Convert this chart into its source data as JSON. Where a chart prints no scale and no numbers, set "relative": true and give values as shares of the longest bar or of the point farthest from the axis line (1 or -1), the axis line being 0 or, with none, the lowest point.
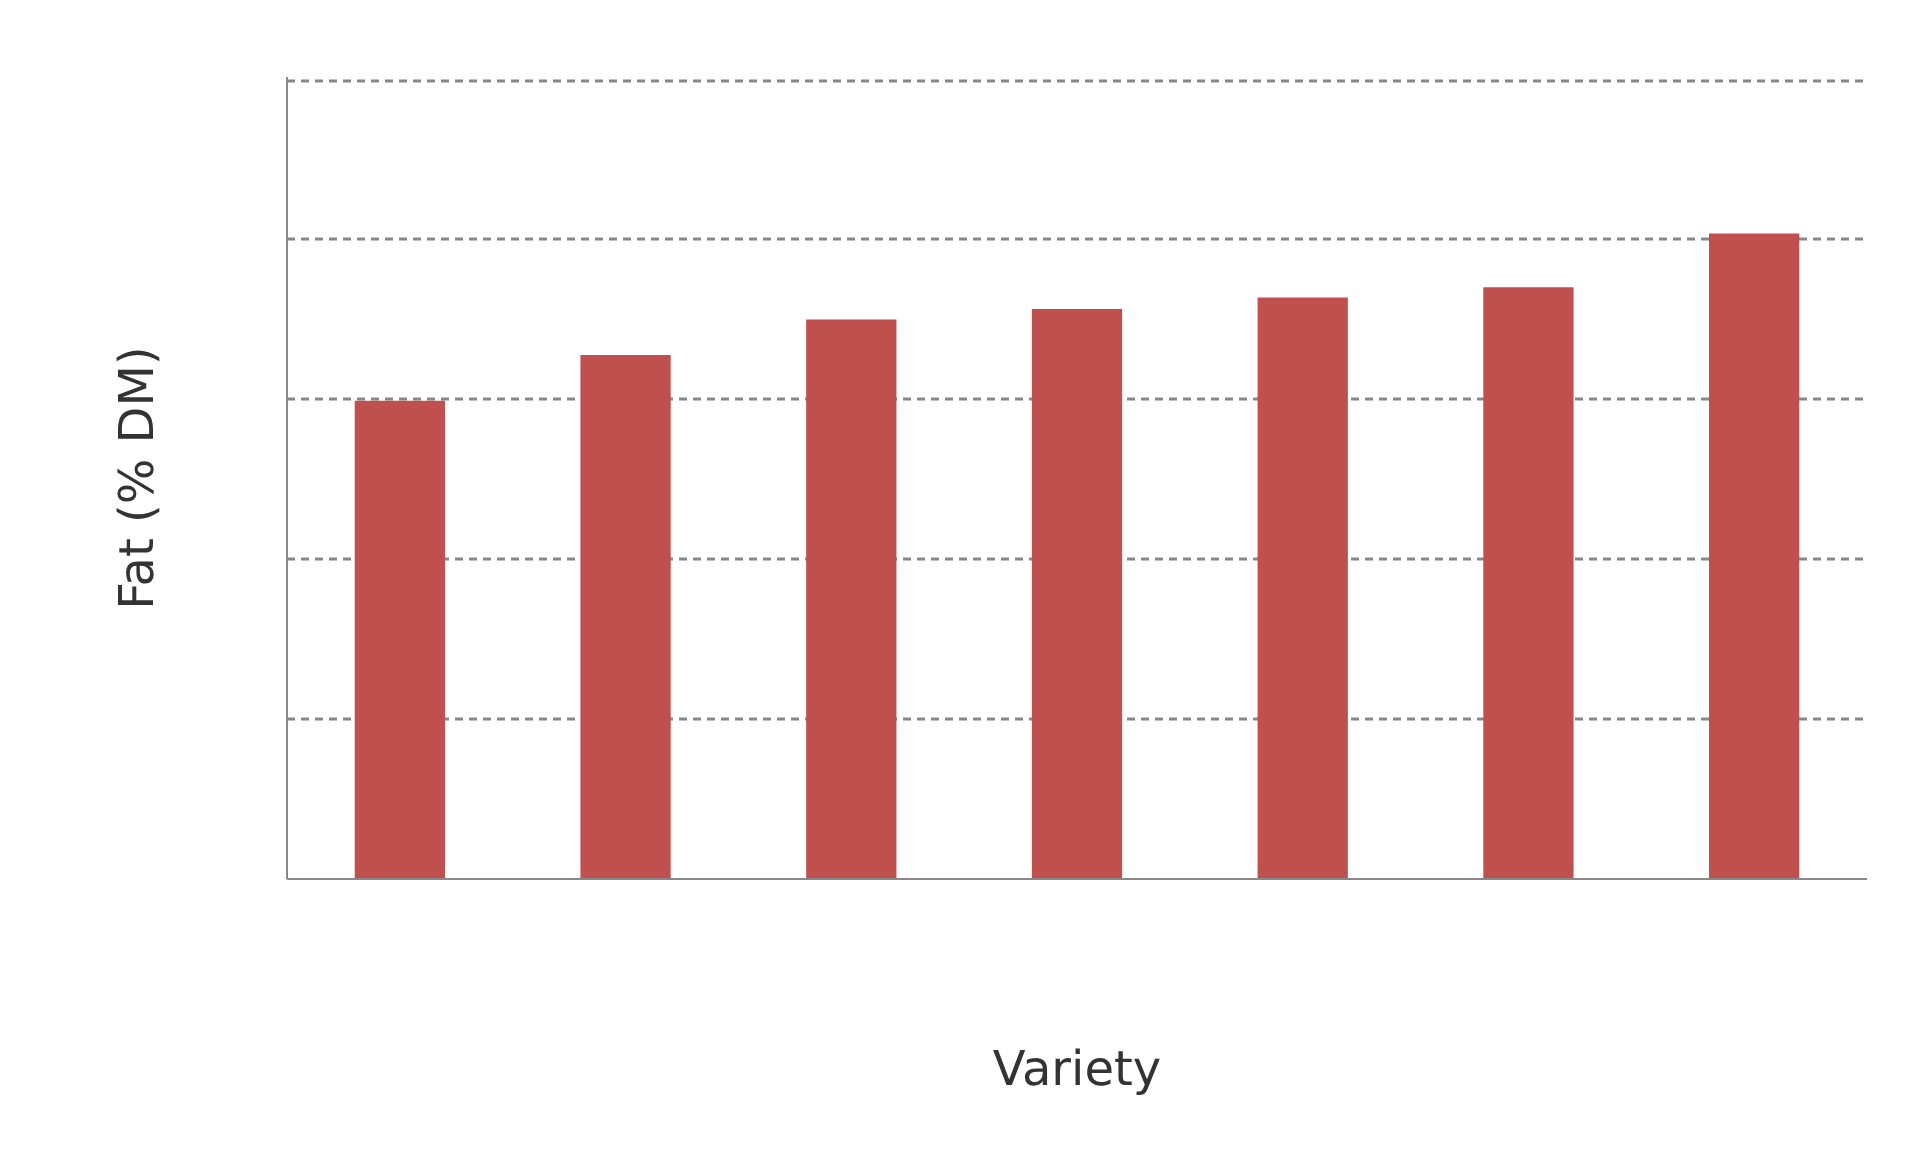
{
  "chart_data": {
    "type": "bar",
    "xlabel": "Variety",
    "ylabel": "Fat (% DM)",
    "relative": true,
    "grid": "y",
    "color": "#c0504d",
    "categories": [
      null,
      null,
      null,
      null,
      null,
      null,
      null
    ],
    "values": [
      0.741,
      0.812,
      0.867,
      0.883,
      0.901,
      0.917,
      1
    ]
  }
}
